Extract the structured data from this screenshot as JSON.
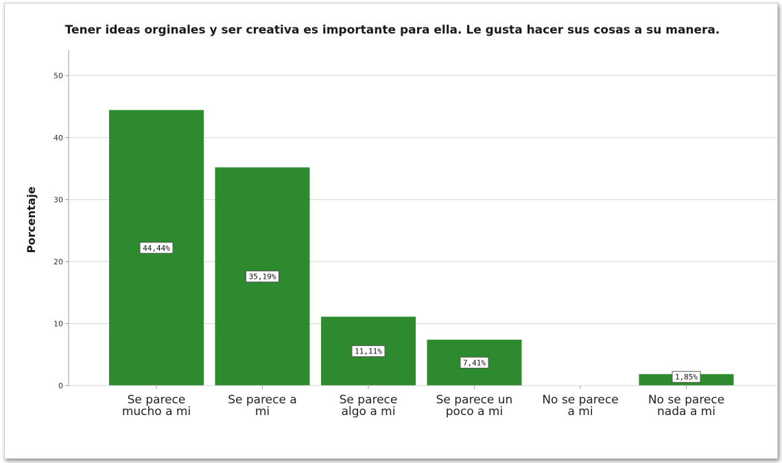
{
  "chart_data": {
    "type": "bar",
    "title": "Tener ideas orginales y ser creativa es importante para ella. Le gusta hacer sus cosas a su manera.",
    "xlabel": "",
    "ylabel": "Porcentaje",
    "ylim": [
      0,
      55
    ],
    "yticks": [
      0,
      10,
      20,
      30,
      40,
      50
    ],
    "grid": true,
    "categories": [
      [
        "Se parece",
        "mucho a mi"
      ],
      [
        "Se parece a",
        "mi"
      ],
      [
        "Se parece",
        "algo a mi"
      ],
      [
        "Se parece un",
        "poco a mi"
      ],
      [
        "No se parece",
        "a mi"
      ],
      [
        "No se parece",
        "nada a mi"
      ]
    ],
    "values": [
      44.44,
      35.19,
      11.11,
      7.41,
      0,
      1.85
    ],
    "data_labels": [
      "44,44%",
      "35,19%",
      "11,11%",
      "7,41%",
      "",
      "1,85%"
    ],
    "colors": {
      "bar": "#2e8a2e",
      "grid": "#d4d4d4",
      "axis": "#9a9a9a"
    }
  }
}
